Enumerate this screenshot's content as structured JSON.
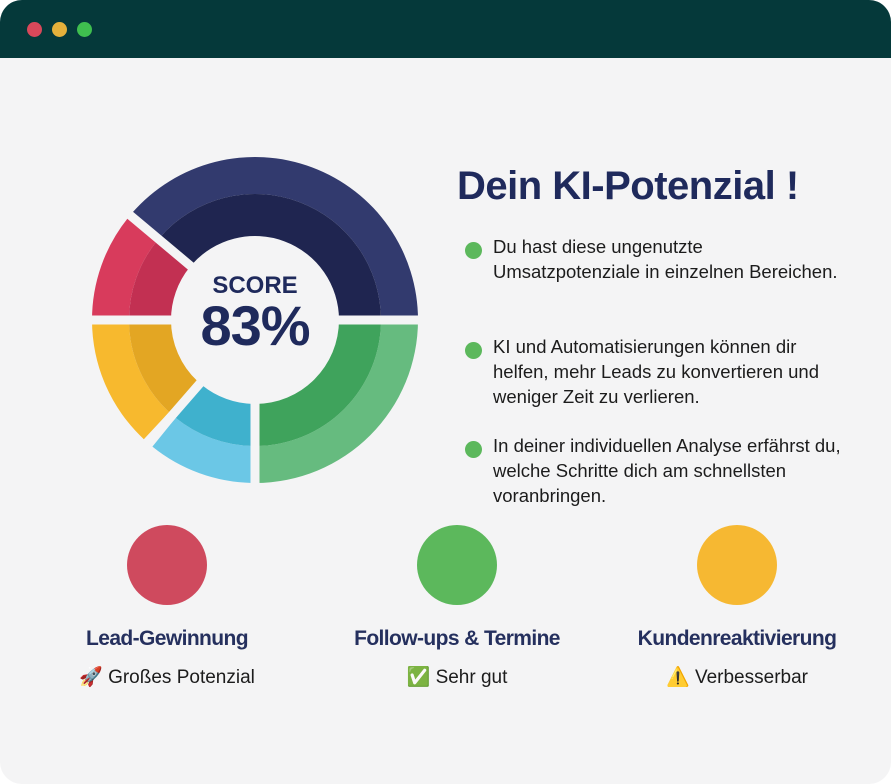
{
  "window": {
    "dots": [
      {
        "name": "close",
        "color": "#d9485a"
      },
      {
        "name": "minimize",
        "color": "#e5b13b"
      },
      {
        "name": "maximize",
        "color": "#3fbf4f"
      }
    ]
  },
  "score": {
    "label": "SCORE",
    "value": "83%"
  },
  "donut_colors": [
    {
      "outer": "#323a6e",
      "inner": "#1f2550"
    },
    {
      "outer": "#66bb7f",
      "inner": "#3fa35c"
    },
    {
      "outer": "#6bc7e6",
      "inner": "#3fb1cd"
    },
    {
      "outer": "#f7b92e",
      "inner": "#e3a623"
    },
    {
      "outer": "#d83b5c",
      "inner": "#c23052"
    }
  ],
  "title": "Dein KI-Potenzial !",
  "bullets": [
    "Du hast diese ungenutzte Umsatzpotenziale in einzelnen Bereichen.",
    "KI und Automatisierungen können dir helfen, mehr Leads zu konvertieren und weniger Zeit zu verlieren.",
    "In deiner individuellen Analyse erfährst du, welche Schritte dich am schnellsten voranbringen."
  ],
  "categories": [
    {
      "label": "Lead-Gewinnung",
      "icon": "🚀",
      "status": "Großes Potenzial",
      "color": "#cf4a5e"
    },
    {
      "label": "Follow-ups & Termine",
      "icon": "✅",
      "status": "Sehr gut",
      "color": "#5cb85c"
    },
    {
      "label": "Kundenreaktivierung",
      "icon": "⚠️",
      "status": "Verbesserbar",
      "color": "#f6b832"
    }
  ]
}
